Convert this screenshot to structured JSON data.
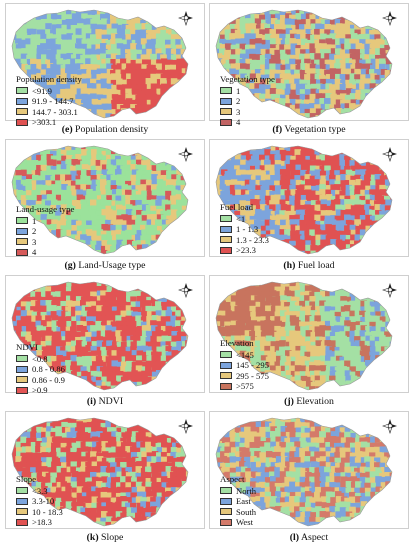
{
  "panels": [
    {
      "letter": "(e)",
      "caption": "Population density",
      "legend_title": "Population density",
      "palette": [
        "#a4e0a4",
        "#7ca4dc",
        "#e6c87c",
        "#e05252"
      ],
      "entries": [
        "<91.9",
        "91.9 - 144.7",
        "144.7 - 303.1",
        ">303.1"
      ]
    },
    {
      "letter": "(f)",
      "caption": "Vegetation type",
      "legend_title": "Vegetation type",
      "palette": [
        "#a4e0a4",
        "#7ca4dc",
        "#e6c87c",
        "#c26464"
      ],
      "entries": [
        "1",
        "2",
        "3",
        "4"
      ]
    },
    {
      "letter": "(g)",
      "caption": "Land-Usage type",
      "legend_title": "Land-usage type",
      "palette": [
        "#9be29b",
        "#7ca4dc",
        "#e6c87c",
        "#d65a5a"
      ],
      "entries": [
        "1",
        "2",
        "3",
        "4"
      ]
    },
    {
      "letter": "(h)",
      "caption": "Fuel load",
      "legend_title": "Fuel load",
      "palette": [
        "#a4e0a4",
        "#7ca4dc",
        "#e6c87c",
        "#e05252"
      ],
      "entries": [
        "<1",
        "1 - 1.3",
        "1.3 - 23.3",
        ">23.3"
      ]
    },
    {
      "letter": "(i)",
      "caption": "NDVI",
      "legend_title": "NDVI",
      "palette": [
        "#a4e0a4",
        "#7ca4dc",
        "#e6c87c",
        "#e25454"
      ],
      "entries": [
        "<0.8",
        "0.8 - 0.86",
        "0.86 - 0.9",
        ">0.9"
      ]
    },
    {
      "letter": "(j)",
      "caption": "Elevation",
      "legend_title": "Elevation",
      "palette": [
        "#a4e0a4",
        "#7ca4dc",
        "#e6c87c",
        "#c8745e"
      ],
      "entries": [
        "<145",
        "145 - 295",
        "295 - 575",
        ">575"
      ]
    },
    {
      "letter": "(k)",
      "caption": "Slope",
      "legend_title": "Slope",
      "palette": [
        "#a4e0a4",
        "#7ca4dc",
        "#e6c87c",
        "#e05252"
      ],
      "entries": [
        "<3.3",
        "3.3-10",
        "10 - 18.3",
        ">18.3"
      ]
    },
    {
      "letter": "(l)",
      "caption": "Aspect",
      "legend_title": "Aspect",
      "palette": [
        "#a4e0a4",
        "#7ca4dc",
        "#e6c87c",
        "#d47a6a"
      ],
      "entries": [
        "North",
        "East",
        "South",
        "West"
      ]
    }
  ],
  "icons": {
    "north_arrow": "north-arrow-icon"
  }
}
